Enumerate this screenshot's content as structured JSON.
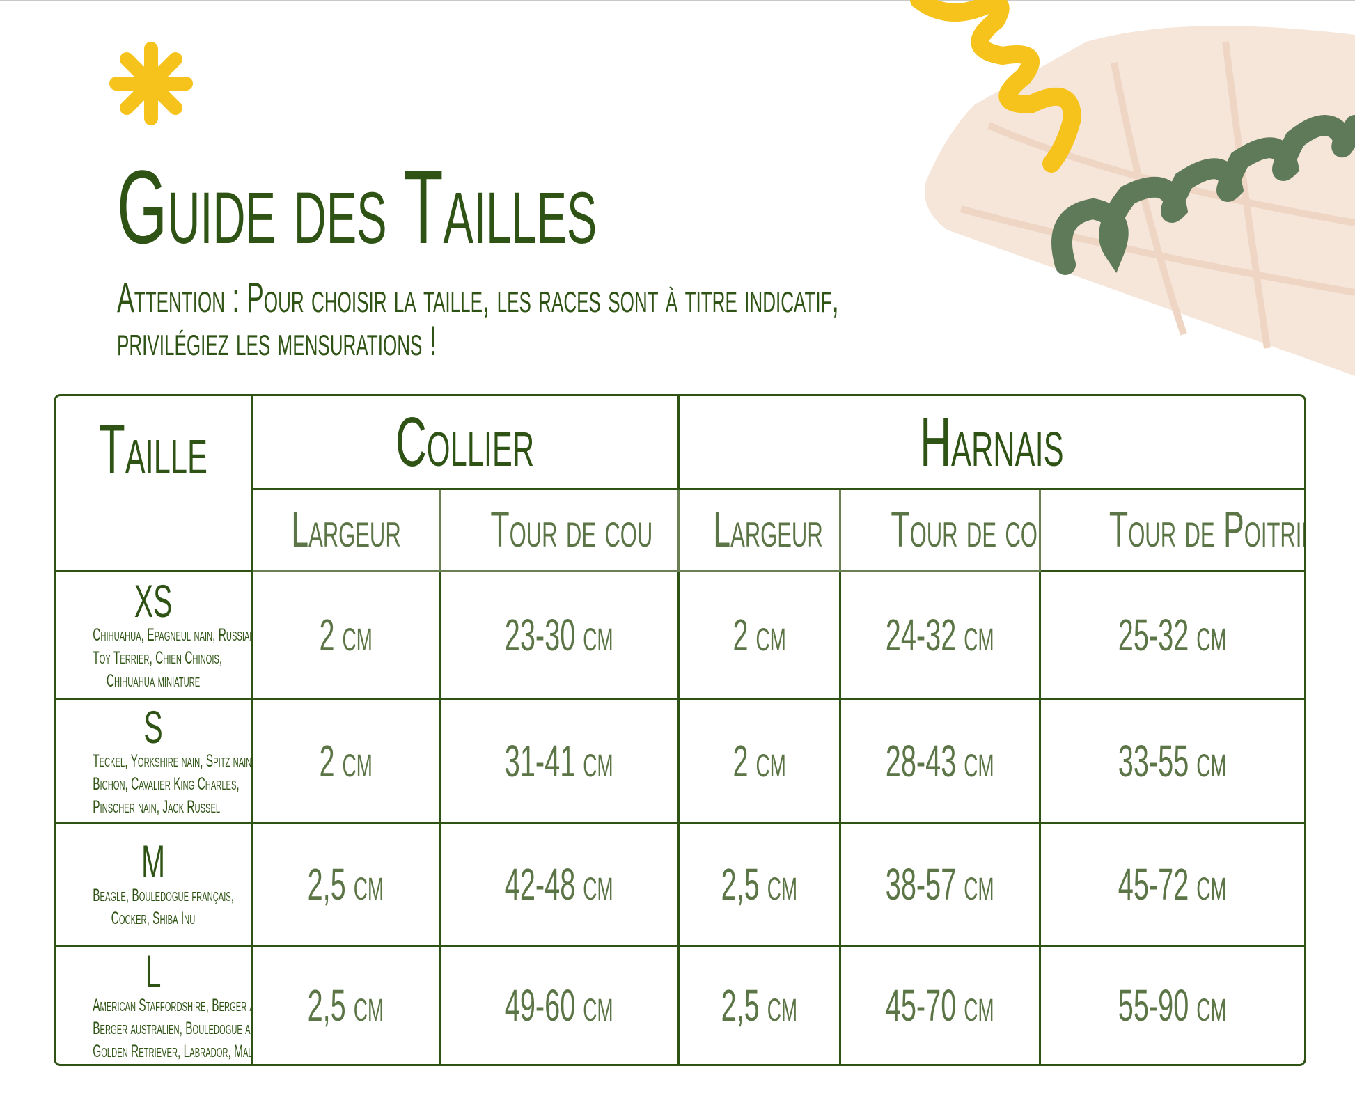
{
  "title": "Guide des Tailles",
  "subtitle": [
    "Attention : Pour choisir la taille, les races sont à titre indicatif,",
    "privilégiez les mensurations !"
  ],
  "colors": {
    "dark_green": "#2e5314",
    "mid_green": "#5c7546",
    "yellow": "#f6c21c",
    "sage": "#5f7a58",
    "beige": "#f6e6da"
  },
  "decorations": [
    "asterisk-icon",
    "yellow-spiral",
    "green-spiral",
    "beige-shape"
  ],
  "table": {
    "header_taille": "Taille",
    "group_collier": "Collier",
    "group_harnais": "Harnais",
    "sub_headers": [
      "Largeur",
      "Tour de cou",
      "Largeur",
      "Tour de cou",
      "Tour de Poitrine"
    ],
    "rows": [
      {
        "size": "XS",
        "breeds": [
          "Chihuahua, Epagneul nain, Russian",
          "Toy Terrier, Chien Chinois,",
          "Chihuahua miniature"
        ],
        "values": [
          "2 cm",
          "23-30 cm",
          "2 cm",
          "24-32 cm",
          "25-32 cm"
        ]
      },
      {
        "size": "S",
        "breeds": [
          "Teckel, Yorkshire nain, Spitz nain,",
          "Bichon, Cavalier King Charles,",
          "Pinscher nain, Jack Russel"
        ],
        "values": [
          "2 cm",
          "31-41 cm",
          "2 cm",
          "28-43 cm",
          "33-55 cm"
        ]
      },
      {
        "size": "M",
        "breeds": [
          "Beagle, Bouledogue français,",
          "Cocker, Shiba Inu"
        ],
        "values": [
          "2,5 cm",
          "42-48 cm",
          "2,5 cm",
          "38-57 cm",
          "45-72 cm"
        ]
      },
      {
        "size": "L",
        "breeds": [
          "American Staffordshire, Berger allemand,",
          "Berger australien, Bouledogue anglais,",
          "Golden Retriever, Labrador, Malinois"
        ],
        "values": [
          "2,5 cm",
          "49-60 cm",
          "2,5 cm",
          "45-70 cm",
          "55-90 cm"
        ]
      }
    ]
  }
}
